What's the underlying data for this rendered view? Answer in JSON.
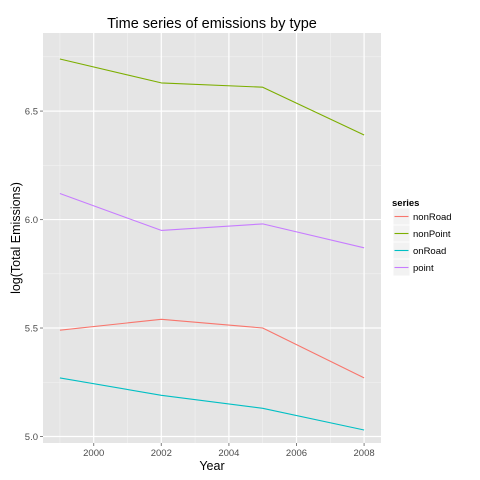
{
  "chart_data": {
    "type": "line",
    "title": "Time series of emissions by type",
    "xlabel": "Year",
    "ylabel": "log(Total Emissions)",
    "xlim": [
      1998.5,
      2008.5
    ],
    "ylim": [
      4.97,
      6.86
    ],
    "x_ticks": [
      2000,
      2002,
      2004,
      2006,
      2008
    ],
    "y_ticks": [
      5.0,
      5.5,
      6.0,
      6.5
    ],
    "x_tick_labels": [
      "2000",
      "2002",
      "2004",
      "2006",
      "2008"
    ],
    "y_tick_labels": [
      "5.0",
      "5.5",
      "6.0",
      "6.5"
    ],
    "x": [
      1999,
      2002,
      2005,
      2008
    ],
    "grid": true,
    "legend": {
      "title": "series",
      "position": "right"
    },
    "series": [
      {
        "name": "nonRoad",
        "color": "#F8766D",
        "values": [
          5.49,
          5.54,
          5.5,
          5.27
        ]
      },
      {
        "name": "nonPoint",
        "color": "#7CAE00",
        "values": [
          6.74,
          6.63,
          6.61,
          6.39
        ]
      },
      {
        "name": "onRoad",
        "color": "#00BFC4",
        "values": [
          5.27,
          5.19,
          5.13,
          5.03
        ]
      },
      {
        "name": "point",
        "color": "#C77CFF",
        "values": [
          6.12,
          5.95,
          5.98,
          5.87
        ]
      }
    ]
  }
}
